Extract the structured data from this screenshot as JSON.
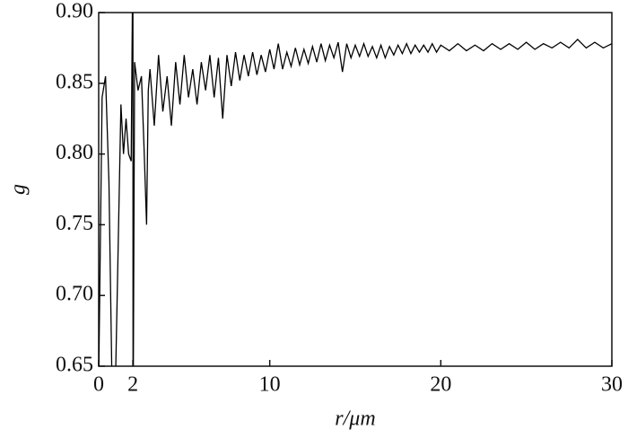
{
  "chart_data": {
    "type": "line",
    "x_label": "r/μm",
    "y_label": "g",
    "x": [
      0,
      0.2,
      0.4,
      0.6,
      0.8,
      0.95,
      1.1,
      1.3,
      1.45,
      1.6,
      1.75,
      1.9,
      2.0,
      2.01,
      2.1,
      2.3,
      2.5,
      2.65,
      2.8,
      2.9,
      3,
      3.25,
      3.5,
      3.75,
      4,
      4.25,
      4.5,
      4.75,
      5,
      5.25,
      5.5,
      5.75,
      6,
      6.25,
      6.5,
      6.75,
      7,
      7.25,
      7.5,
      7.75,
      8,
      8.25,
      8.5,
      8.75,
      9,
      9.25,
      9.5,
      9.75,
      10,
      10.25,
      10.5,
      10.75,
      11,
      11.25,
      11.5,
      11.75,
      12,
      12.25,
      12.5,
      12.75,
      13,
      13.25,
      13.5,
      13.75,
      14,
      14.25,
      14.5,
      14.75,
      15,
      15.25,
      15.5,
      15.75,
      16,
      16.25,
      16.5,
      16.75,
      17,
      17.25,
      17.5,
      17.75,
      18,
      18.25,
      18.5,
      18.75,
      19,
      19.25,
      19.5,
      19.75,
      20,
      20.5,
      21,
      21.5,
      22,
      22.5,
      23,
      23.5,
      24,
      24.5,
      25,
      25.5,
      26,
      26.5,
      27,
      27.5,
      28,
      28.5,
      29,
      29.5,
      30
    ],
    "values": [
      0.64,
      0.84,
      0.855,
      0.78,
      0.62,
      0.62,
      0.71,
      0.835,
      0.8,
      0.825,
      0.8,
      0.795,
      0.95,
      0.6,
      0.865,
      0.845,
      0.855,
      0.805,
      0.75,
      0.845,
      0.86,
      0.82,
      0.87,
      0.83,
      0.855,
      0.82,
      0.865,
      0.835,
      0.87,
      0.84,
      0.86,
      0.835,
      0.865,
      0.845,
      0.87,
      0.84,
      0.868,
      0.825,
      0.87,
      0.848,
      0.872,
      0.852,
      0.87,
      0.855,
      0.872,
      0.856,
      0.87,
      0.858,
      0.874,
      0.86,
      0.878,
      0.86,
      0.872,
      0.862,
      0.875,
      0.863,
      0.874,
      0.864,
      0.876,
      0.865,
      0.878,
      0.866,
      0.877,
      0.868,
      0.879,
      0.858,
      0.878,
      0.868,
      0.877,
      0.869,
      0.878,
      0.869,
      0.876,
      0.868,
      0.877,
      0.868,
      0.876,
      0.87,
      0.877,
      0.871,
      0.878,
      0.871,
      0.877,
      0.872,
      0.877,
      0.872,
      0.878,
      0.872,
      0.877,
      0.873,
      0.878,
      0.873,
      0.877,
      0.873,
      0.878,
      0.874,
      0.878,
      0.874,
      0.879,
      0.874,
      0.878,
      0.875,
      0.879,
      0.875,
      0.881,
      0.875,
      0.879,
      0.875,
      0.878
    ],
    "color": "#000000",
    "xlim": [
      0,
      30
    ],
    "xticks": [
      0,
      2,
      10,
      20,
      30
    ],
    "ylim": [
      0.65,
      0.9
    ],
    "yticks": [
      0.65,
      {
        "value": 0.7,
        "label": "0.70"
      },
      0.75,
      {
        "value": 0.8,
        "label": "0.80"
      },
      0.85,
      {
        "value": 0.9,
        "label": "0.90"
      }
    ]
  }
}
